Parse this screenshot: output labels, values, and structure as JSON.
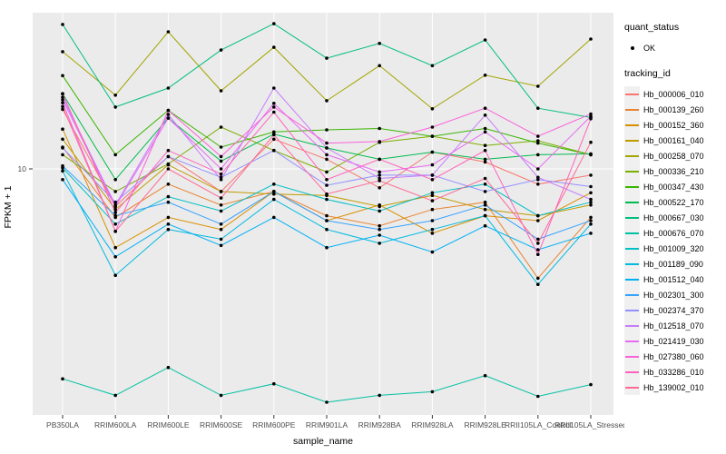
{
  "figure": {
    "x_axis_title": "sample_name",
    "y_axis_title": "FPKM + 1",
    "y_tick_label": "10"
  },
  "legend": {
    "quant_status_title": "quant_status",
    "quant_status_items": [
      {
        "label": "OK",
        "marker": "point-icon",
        "color": "#000000"
      }
    ],
    "tracking_id_title": "tracking_id"
  },
  "chart_data": {
    "type": "line",
    "title": "",
    "xlabel": "sample_name",
    "ylabel": "FPKM + 1",
    "y_scale": "log10",
    "y_breaks": [
      10
    ],
    "ylim_approx": [
      0.95,
      45
    ],
    "grid": true,
    "legend_position": "right",
    "panel_bg": "#EBEBEB",
    "gridline_color": "#FFFFFF",
    "point_color": "#000000",
    "quant_status": "OK",
    "categories": [
      "PB350LA",
      "RRIM600LA",
      "RRIM600LE",
      "RRIM600SE",
      "RRIM600PE",
      "RRIM901LA",
      "RRIM928BA",
      "RRIM928LA",
      "RRIM928LE",
      "RRII105LA_Control",
      "RRII105LA_Stressed"
    ],
    "series": [
      {
        "name": "Hb_000006_010",
        "color": "#F8766D",
        "values": [
          18.0,
          6.9,
          11.3,
          8.0,
          13.4,
          11.0,
          8.3,
          11.8,
          10.7,
          8.6,
          9.4
        ]
      },
      {
        "name": "Hb_000139_260",
        "color": "#EA8331",
        "values": [
          12.4,
          6.2,
          8.6,
          7.0,
          8.0,
          6.3,
          5.7,
          6.7,
          7.2,
          3.4,
          6.2
        ]
      },
      {
        "name": "Hb_000152_360",
        "color": "#D89000",
        "values": [
          14.8,
          4.6,
          6.2,
          5.5,
          8.0,
          6.0,
          7.0,
          5.3,
          6.3,
          6.0,
          7.9
        ]
      },
      {
        "name": "Hb_000161_040",
        "color": "#C09B00",
        "values": [
          13.4,
          6.7,
          10.4,
          8.0,
          7.8,
          7.7,
          6.9,
          7.7,
          6.7,
          6.3,
          7.0
        ]
      },
      {
        "name": "Hb_000258_070",
        "color": "#A3A500",
        "values": [
          31.8,
          20.7,
          38.7,
          21.6,
          33.2,
          19.6,
          27.7,
          18.1,
          25.2,
          22.6,
          36.0
        ]
      },
      {
        "name": "Hb_000336_210",
        "color": "#7CAE00",
        "values": [
          11.5,
          8.0,
          10.5,
          15.1,
          12.0,
          9.7,
          13.0,
          13.8,
          12.6,
          13.2,
          11.5
        ]
      },
      {
        "name": "Hb_000347_430",
        "color": "#39B600",
        "values": [
          25.1,
          11.5,
          17.8,
          12.4,
          14.4,
          14.7,
          14.9,
          13.8,
          14.9,
          12.9,
          11.5
        ]
      },
      {
        "name": "Hb_000522_170",
        "color": "#00BB4E",
        "values": [
          21.0,
          9.0,
          16.5,
          10.8,
          14.1,
          12.3,
          11.0,
          11.8,
          11.0,
          11.5,
          11.6
        ]
      },
      {
        "name": "Hb_000667_030",
        "color": "#00BF7D",
        "values": [
          41.6,
          18.4,
          22.2,
          32.3,
          41.9,
          29.8,
          34.5,
          27.7,
          35.7,
          18.2,
          16.6
        ]
      },
      {
        "name": "Hb_000676_070",
        "color": "#00C1A3",
        "values": [
          1.26,
          1.07,
          1.41,
          1.07,
          1.2,
          1.0,
          1.07,
          1.11,
          1.3,
          1.06,
          1.19
        ]
      },
      {
        "name": "Hb_001009_320",
        "color": "#00BFC4",
        "values": [
          10.1,
          5.8,
          7.6,
          6.6,
          8.6,
          7.4,
          6.6,
          7.9,
          8.6,
          6.3,
          7.2
        ]
      },
      {
        "name": "Hb_001189_090",
        "color": "#00BAE0",
        "values": [
          9.8,
          3.5,
          5.5,
          5.0,
          7.4,
          5.5,
          4.8,
          5.5,
          6.3,
          3.2,
          5.8
        ]
      },
      {
        "name": "Hb_001512_040",
        "color": "#00B0F6",
        "values": [
          9.0,
          4.2,
          5.8,
          4.7,
          6.2,
          4.6,
          5.2,
          4.4,
          5.7,
          4.5,
          5.3
        ]
      },
      {
        "name": "Hb_002301_300",
        "color": "#35A2FF",
        "values": [
          10.3,
          6.3,
          7.2,
          5.8,
          8.0,
          6.0,
          5.5,
          6.0,
          7.0,
          5.0,
          6.0
        ]
      },
      {
        "name": "Hb_002374_370",
        "color": "#9590FF",
        "values": [
          12.3,
          7.2,
          11.3,
          9.2,
          12.0,
          8.5,
          9.4,
          9.4,
          8.0,
          9.0,
          8.4
        ]
      },
      {
        "name": "Hb_012518_070",
        "color": "#C77CFF",
        "values": [
          20.3,
          7.0,
          17.1,
          9.0,
          22.2,
          12.3,
          9.1,
          9.4,
          17.0,
          9.2,
          7.4
        ]
      },
      {
        "name": "Hb_021419_030",
        "color": "#E76BF3",
        "values": [
          19.8,
          6.9,
          16.5,
          10.0,
          19.1,
          11.5,
          9.7,
          10.4,
          14.4,
          10.0,
          16.8
        ]
      },
      {
        "name": "Hb_027380_060",
        "color": "#FA62DB",
        "values": [
          19.2,
          5.4,
          17.8,
          11.3,
          18.4,
          12.9,
          13.1,
          15.1,
          18.2,
          13.8,
          17.2
        ]
      },
      {
        "name": "Hb_033286_010",
        "color": "#FF62BC",
        "values": [
          21.0,
          6.5,
          12.0,
          9.5,
          17.5,
          9.0,
          11.0,
          9.0,
          12.0,
          4.3,
          16.4
        ]
      },
      {
        "name": "Hb_139002_010",
        "color": "#FF6A98",
        "values": [
          18.5,
          5.4,
          10.0,
          7.5,
          14.0,
          7.8,
          8.9,
          7.3,
          9.1,
          4.8,
          13.0
        ]
      }
    ]
  }
}
